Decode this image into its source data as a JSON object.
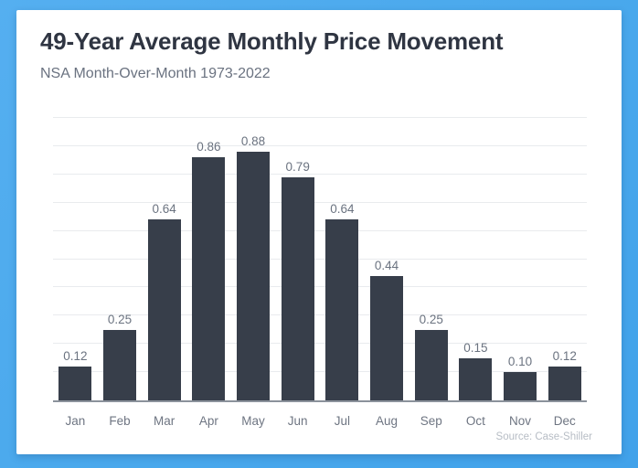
{
  "frame": {
    "border_color_light": "#55aff0",
    "border_color_dark": "#41a2ea",
    "panel_color": "#ffffff"
  },
  "chart_data": {
    "type": "bar",
    "title": "49-Year Average Monthly Price Movement",
    "subtitle": "NSA Month-Over-Month 1973-2022",
    "source": "Source: Case-Shiller",
    "categories": [
      "Jan",
      "Feb",
      "Mar",
      "Apr",
      "May",
      "Jun",
      "Jul",
      "Aug",
      "Sep",
      "Oct",
      "Nov",
      "Dec"
    ],
    "values": [
      0.12,
      0.25,
      0.64,
      0.86,
      0.88,
      0.79,
      0.64,
      0.44,
      0.25,
      0.15,
      0.1,
      0.12
    ],
    "value_labels": [
      "0.12",
      "0.25",
      "0.64",
      "0.86",
      "0.88",
      "0.79",
      "0.64",
      "0.44",
      "0.25",
      "0.15",
      "0.10",
      "0.12"
    ],
    "xlabel": "",
    "ylabel": "",
    "ylim": [
      0,
      1.0
    ],
    "gridline_interval": 0.1,
    "grid": true,
    "legend_position": "none",
    "bar_color": "#373e4a",
    "gridline_color": "#e9ebee",
    "axis_line_color": "#8b929b",
    "title_color": "#2f3542",
    "subtitle_color": "#6a7280",
    "label_color": "#6b7380",
    "source_color": "#b7bdc5"
  }
}
